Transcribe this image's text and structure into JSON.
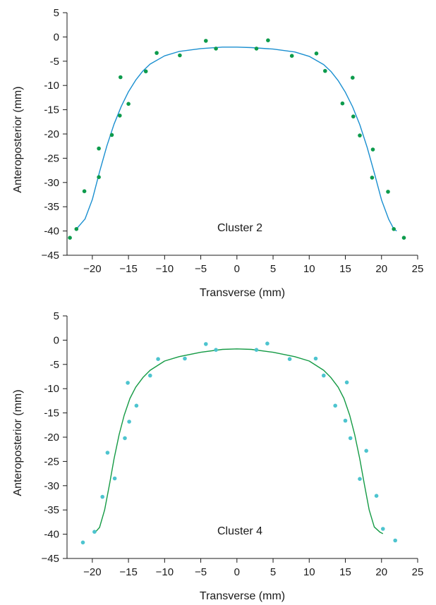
{
  "chart_data": [
    {
      "type": "scatter",
      "annotation": "Cluster 2",
      "xlabel": "Transverse (mm)",
      "ylabel": "Anteroposterior (mm)",
      "xlim": [
        -23.5,
        25
      ],
      "ylim": [
        -45,
        5
      ],
      "xticks": [
        -20,
        -15,
        -10,
        -5,
        0,
        5,
        10,
        15,
        20,
        25
      ],
      "xtick_labels": [
        "−20",
        "−15",
        "−10",
        "−5",
        "0",
        "5",
        "10",
        "15",
        "20",
        "25"
      ],
      "yticks": [
        5,
        0,
        -5,
        -10,
        -15,
        -20,
        -25,
        -30,
        -35,
        -40,
        -45
      ],
      "ytick_labels": [
        "5",
        "0",
        "-5",
        "-10",
        "-15",
        "-20",
        "-25",
        "-30",
        "-35",
        "-40",
        "−45"
      ],
      "grid": false,
      "point_color": "#0d9b4c",
      "curve_color": "#1a8fd0",
      "points": [
        [
          -23.1,
          -41.4
        ],
        [
          -22.2,
          -39.6
        ],
        [
          -21.1,
          -31.8
        ],
        [
          -19.1,
          -28.9
        ],
        [
          -19.1,
          -23.0
        ],
        [
          -17.3,
          -20.2
        ],
        [
          -16.2,
          -16.2
        ],
        [
          -15.0,
          -13.8
        ],
        [
          -16.1,
          -8.3
        ],
        [
          -12.6,
          -7.1
        ],
        [
          -11.1,
          -3.3
        ],
        [
          -7.9,
          -3.8
        ],
        [
          -4.3,
          -0.8
        ],
        [
          -2.9,
          -2.4
        ],
        [
          2.7,
          -2.4
        ],
        [
          4.3,
          -0.7
        ],
        [
          7.6,
          -3.9
        ],
        [
          11.0,
          -3.4
        ],
        [
          12.2,
          -7.0
        ],
        [
          14.6,
          -13.7
        ],
        [
          16.0,
          -8.4
        ],
        [
          16.1,
          -16.4
        ],
        [
          17.0,
          -20.3
        ],
        [
          18.8,
          -23.2
        ],
        [
          18.7,
          -29.0
        ],
        [
          20.9,
          -31.9
        ],
        [
          21.7,
          -39.6
        ],
        [
          23.1,
          -41.4
        ]
      ],
      "fit_curve": [
        [
          -22.2,
          -39.6
        ],
        [
          -21.0,
          -37.5
        ],
        [
          -20.0,
          -33.5
        ],
        [
          -19.0,
          -27.8
        ],
        [
          -18.0,
          -22.5
        ],
        [
          -17.0,
          -18.0
        ],
        [
          -16.0,
          -14.3
        ],
        [
          -15.0,
          -11.3
        ],
        [
          -14.0,
          -8.9
        ],
        [
          -13.0,
          -7.0
        ],
        [
          -12.0,
          -5.6
        ],
        [
          -10.0,
          -3.9
        ],
        [
          -8.0,
          -3.0
        ],
        [
          -5.0,
          -2.4
        ],
        [
          -2.0,
          -2.1
        ],
        [
          0.0,
          -2.1
        ],
        [
          2.0,
          -2.2
        ],
        [
          5.0,
          -2.5
        ],
        [
          8.0,
          -3.1
        ],
        [
          10.0,
          -4.0
        ],
        [
          12.0,
          -5.7
        ],
        [
          13.0,
          -7.1
        ],
        [
          14.0,
          -9.0
        ],
        [
          15.0,
          -11.4
        ],
        [
          16.0,
          -14.4
        ],
        [
          17.0,
          -18.1
        ],
        [
          18.0,
          -22.7
        ],
        [
          19.0,
          -28.0
        ],
        [
          20.0,
          -33.6
        ],
        [
          21.0,
          -37.6
        ],
        [
          21.7,
          -39.6
        ],
        [
          22.1,
          -40.0
        ]
      ]
    },
    {
      "type": "scatter",
      "annotation": "Cluster 4",
      "xlabel": "Transverse (mm)",
      "ylabel": "Anteroposterior (mm)",
      "xlim": [
        -23.5,
        25
      ],
      "ylim": [
        -45,
        5
      ],
      "xticks": [
        -20,
        -15,
        -10,
        -5,
        0,
        5,
        10,
        15,
        20,
        25
      ],
      "xtick_labels": [
        "−20",
        "−15",
        "−10",
        "−5",
        "0",
        "5",
        "10",
        "15",
        "20",
        "25"
      ],
      "yticks": [
        5,
        0,
        -5,
        -10,
        -15,
        -20,
        -25,
        -30,
        -35,
        -40,
        -45
      ],
      "ytick_labels": [
        "5",
        "0",
        "-5",
        "-10",
        "-15",
        "-20",
        "-25",
        "-30",
        "-35",
        "-40",
        "−45"
      ],
      "grid": false,
      "point_color": "#4dc4cf",
      "curve_color": "#149a44",
      "points": [
        [
          -21.3,
          -41.7
        ],
        [
          -19.7,
          -39.5
        ],
        [
          -18.6,
          -32.3
        ],
        [
          -17.9,
          -23.2
        ],
        [
          -16.9,
          -28.5
        ],
        [
          -15.5,
          -20.2
        ],
        [
          -15.1,
          -8.8
        ],
        [
          -14.9,
          -16.8
        ],
        [
          -13.9,
          -13.5
        ],
        [
          -12.0,
          -7.3
        ],
        [
          -10.9,
          -3.9
        ],
        [
          -7.2,
          -3.8
        ],
        [
          -4.3,
          -0.8
        ],
        [
          -2.9,
          -2.0
        ],
        [
          2.7,
          -2.0
        ],
        [
          4.2,
          -0.7
        ],
        [
          7.3,
          -3.9
        ],
        [
          10.9,
          -3.8
        ],
        [
          12.0,
          -7.3
        ],
        [
          13.6,
          -13.5
        ],
        [
          15.2,
          -8.7
        ],
        [
          15.0,
          -16.6
        ],
        [
          15.7,
          -20.2
        ],
        [
          17.0,
          -28.6
        ],
        [
          17.9,
          -22.8
        ],
        [
          19.3,
          -32.1
        ],
        [
          20.2,
          -38.9
        ],
        [
          21.9,
          -41.3
        ]
      ],
      "fit_curve": [
        [
          -19.6,
          -39.6
        ],
        [
          -19.0,
          -38.6
        ],
        [
          -18.3,
          -35.0
        ],
        [
          -17.6,
          -29.5
        ],
        [
          -17.0,
          -24.5
        ],
        [
          -16.3,
          -19.5
        ],
        [
          -15.6,
          -15.5
        ],
        [
          -14.8,
          -12.0
        ],
        [
          -14.0,
          -9.7
        ],
        [
          -13.0,
          -7.7
        ],
        [
          -12.0,
          -6.2
        ],
        [
          -10.0,
          -4.3
        ],
        [
          -8.0,
          -3.4
        ],
        [
          -5.0,
          -2.5
        ],
        [
          -2.0,
          -1.9
        ],
        [
          0.0,
          -1.8
        ],
        [
          2.0,
          -1.9
        ],
        [
          5.0,
          -2.5
        ],
        [
          8.0,
          -3.4
        ],
        [
          10.0,
          -4.3
        ],
        [
          12.0,
          -6.2
        ],
        [
          13.0,
          -7.7
        ],
        [
          14.0,
          -9.7
        ],
        [
          14.8,
          -12.0
        ],
        [
          15.6,
          -15.5
        ],
        [
          16.3,
          -19.5
        ],
        [
          17.0,
          -24.5
        ],
        [
          17.6,
          -29.5
        ],
        [
          18.3,
          -35.0
        ],
        [
          19.0,
          -38.5
        ],
        [
          19.8,
          -39.6
        ],
        [
          20.2,
          -39.9
        ]
      ]
    }
  ]
}
